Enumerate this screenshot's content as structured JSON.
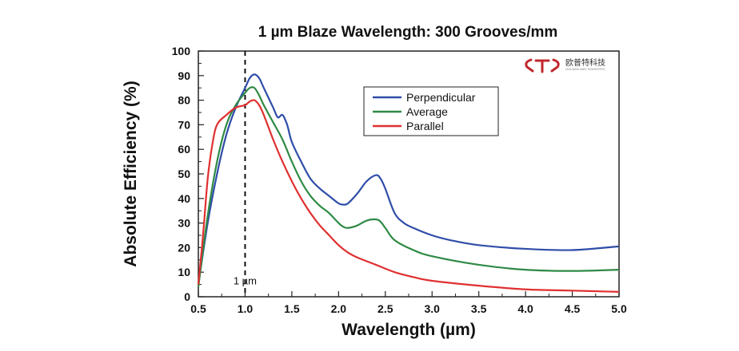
{
  "chart_data": {
    "type": "line",
    "title": "1 µm Blaze Wavelength: 300 Grooves/mm",
    "xlabel": "Wavelength (µm)",
    "ylabel": "Absolute Efficiency (%)",
    "xlim": [
      0.5,
      5.0
    ],
    "ylim": [
      0,
      100
    ],
    "x_ticks": [
      "0.5",
      "1.0",
      "1.5",
      "2.0",
      "2.5",
      "3.0",
      "3.5",
      "4.0",
      "4.5",
      "5.0"
    ],
    "y_ticks": [
      "0",
      "10",
      "20",
      "30",
      "40",
      "50",
      "60",
      "70",
      "80",
      "90",
      "100"
    ],
    "grid": false,
    "legend_position": "top-center",
    "annotations": [
      {
        "text": "1 µm",
        "x": 1.0,
        "y": 5,
        "line": "vertical dashed at x = 1.0"
      }
    ],
    "series": [
      {
        "name": "Perpendicular",
        "color": "#2f4da8",
        "x": [
          0.5,
          0.6,
          0.7,
          0.8,
          0.9,
          1.0,
          1.05,
          1.1,
          1.15,
          1.2,
          1.3,
          1.35,
          1.4,
          1.45,
          1.5,
          1.6,
          1.7,
          1.8,
          1.9,
          2.0,
          2.05,
          2.1,
          2.2,
          2.3,
          2.4,
          2.45,
          2.5,
          2.6,
          2.7,
          2.8,
          3.0,
          3.2,
          3.5,
          4.0,
          4.5,
          5.0
        ],
        "y": [
          5,
          30,
          50,
          66,
          77,
          85,
          89,
          90.5,
          89,
          85,
          77,
          73,
          74,
          70,
          63,
          55,
          48,
          44,
          41,
          38,
          37.5,
          38,
          42,
          47,
          49.5,
          48,
          44,
          34,
          30,
          28,
          25,
          23,
          21,
          19.5,
          19,
          20.5
        ]
      },
      {
        "name": "Average",
        "color": "#2f8a45",
        "x": [
          0.5,
          0.6,
          0.7,
          0.8,
          0.9,
          1.0,
          1.05,
          1.1,
          1.15,
          1.2,
          1.3,
          1.4,
          1.5,
          1.6,
          1.7,
          1.8,
          1.9,
          2.0,
          2.05,
          2.1,
          2.2,
          2.3,
          2.4,
          2.45,
          2.5,
          2.6,
          2.8,
          3.0,
          3.5,
          4.0,
          4.5,
          5.0
        ],
        "y": [
          4,
          33,
          55,
          70,
          78,
          83,
          85,
          85,
          82,
          78,
          71,
          64,
          55,
          47,
          41,
          37,
          34,
          30,
          28.5,
          28,
          29,
          31,
          31.5,
          30.5,
          28,
          23,
          19,
          16.5,
          13,
          11,
          10.5,
          11
        ]
      },
      {
        "name": "Parallel",
        "color": "#e03030",
        "x": [
          0.5,
          0.55,
          0.6,
          0.65,
          0.7,
          0.8,
          0.9,
          1.0,
          1.05,
          1.1,
          1.15,
          1.2,
          1.3,
          1.4,
          1.5,
          1.6,
          1.7,
          1.8,
          1.9,
          2.0,
          2.1,
          2.2,
          2.4,
          2.6,
          2.8,
          3.0,
          3.5,
          4.0,
          4.5,
          5.0
        ],
        "y": [
          5,
          25,
          48,
          62,
          70,
          74,
          77,
          78,
          79.5,
          80,
          78,
          74,
          64,
          55,
          47,
          40,
          34,
          29,
          25,
          21,
          18,
          16,
          13,
          10,
          8,
          6.5,
          4.5,
          3,
          2.5,
          2
        ]
      }
    ]
  },
  "logo": {
    "text": "欧普特科技",
    "subtext": "GOLDEN WAY SCIENTIFIC",
    "color": "#c0272d"
  }
}
